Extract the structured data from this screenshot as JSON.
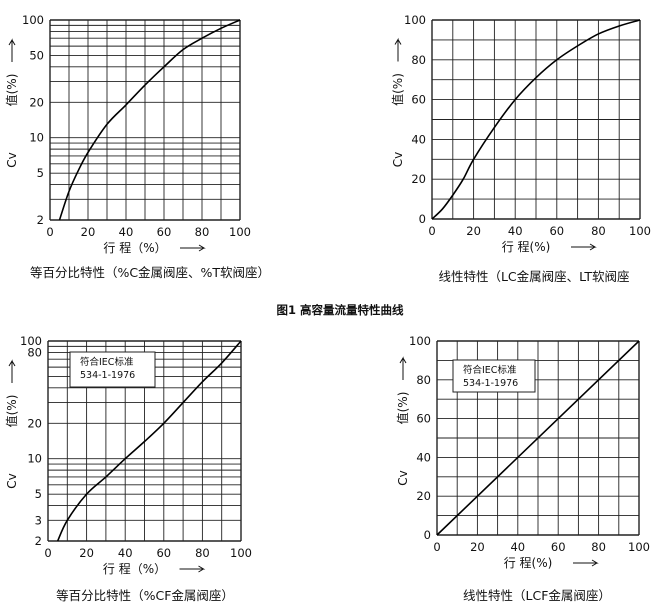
{
  "figure": {
    "title": "图1 高容量流量特性曲线"
  },
  "chart_data": [
    {
      "type": "line",
      "scale_y": "log",
      "caption": "等百分比特性（%C金属阀座、%T软阀座）",
      "xlabel": "行 程（%）",
      "ylabel_main": "Cv",
      "ylabel_sub": "值(%)",
      "xlim": [
        0,
        100
      ],
      "ylim": [
        2,
        100
      ],
      "xticks": [
        "0",
        "20",
        "40",
        "60",
        "80",
        "100"
      ],
      "yticks": [
        {
          "value": 2,
          "label": "2"
        },
        {
          "value": 5,
          "label": "5"
        },
        {
          "value": 10,
          "label": "10"
        },
        {
          "value": 20,
          "label": "20"
        },
        {
          "value": 50,
          "label": "50"
        },
        {
          "value": 100,
          "label": "100"
        }
      ],
      "grid": true,
      "series": [
        {
          "x": [
            5,
            10,
            15,
            20,
            30,
            40,
            50,
            60,
            70,
            80,
            90,
            100
          ],
          "y": [
            2,
            3.5,
            5.3,
            7.5,
            13,
            19,
            28,
            40,
            56,
            70,
            85,
            100
          ]
        }
      ]
    },
    {
      "type": "line",
      "caption": "线性特性（LC金属阀座、LT软阀座",
      "xlabel": "行 程(%)",
      "ylabel_main": "Cv",
      "ylabel_sub": "值(%)",
      "xlim": [
        0,
        100
      ],
      "ylim": [
        0,
        100
      ],
      "xticks": [
        "0",
        "20",
        "40",
        "60",
        "80",
        "100"
      ],
      "yticks": [
        {
          "value": 0,
          "label": "0"
        },
        {
          "value": 20,
          "label": "20"
        },
        {
          "value": 40,
          "label": "40"
        },
        {
          "value": 60,
          "label": "60"
        },
        {
          "value": 80,
          "label": "80"
        },
        {
          "value": 100,
          "label": "100"
        }
      ],
      "grid": true,
      "series": [
        {
          "x": [
            0,
            5,
            10,
            15,
            20,
            30,
            40,
            50,
            60,
            70,
            80,
            90,
            100
          ],
          "y": [
            0,
            5,
            12,
            20,
            30,
            46,
            60,
            71,
            80,
            87,
            93,
            97,
            100
          ]
        }
      ]
    },
    {
      "type": "line",
      "scale_y": "log",
      "caption": "等百分比特性（%CF金属阀座）",
      "xlabel": "行 程（%）",
      "ylabel_main": "Cv",
      "ylabel_sub": "值(%)",
      "annotation": [
        "符合IEC标准",
        "534-1-1976"
      ],
      "xlim": [
        0,
        100
      ],
      "ylim": [
        2,
        100
      ],
      "xticks": [
        "0",
        "20",
        "40",
        "60",
        "80",
        "100"
      ],
      "yticks": [
        {
          "value": 2,
          "label": "2"
        },
        {
          "value": 3,
          "label": "3"
        },
        {
          "value": 5,
          "label": "5"
        },
        {
          "value": 10,
          "label": "10"
        },
        {
          "value": 20,
          "label": "20"
        },
        {
          "value": 80,
          "label": "80"
        },
        {
          "value": 100,
          "label": "100"
        }
      ],
      "grid": true,
      "series": [
        {
          "x": [
            5,
            10,
            20,
            30,
            40,
            50,
            60,
            70,
            80,
            90,
            100
          ],
          "y": [
            2,
            3,
            5,
            7,
            10,
            14,
            20,
            30,
            45,
            65,
            100
          ]
        }
      ]
    },
    {
      "type": "line",
      "caption": "线性特性（LCF金属阀座）",
      "xlabel": "行 程(%)",
      "ylabel_main": "Cv",
      "ylabel_sub": "值(%)",
      "annotation": [
        "符合IEC标准",
        "534-1-1976"
      ],
      "xlim": [
        0,
        100
      ],
      "ylim": [
        0,
        100
      ],
      "xticks": [
        "0",
        "20",
        "40",
        "60",
        "80",
        "100"
      ],
      "yticks": [
        {
          "value": 0,
          "label": "0"
        },
        {
          "value": 20,
          "label": "20"
        },
        {
          "value": 40,
          "label": "40"
        },
        {
          "value": 60,
          "label": "60"
        },
        {
          "value": 80,
          "label": "80"
        },
        {
          "value": 100,
          "label": "100"
        }
      ],
      "grid": true,
      "series": [
        {
          "x": [
            0,
            100
          ],
          "y": [
            0,
            100
          ]
        }
      ]
    }
  ]
}
